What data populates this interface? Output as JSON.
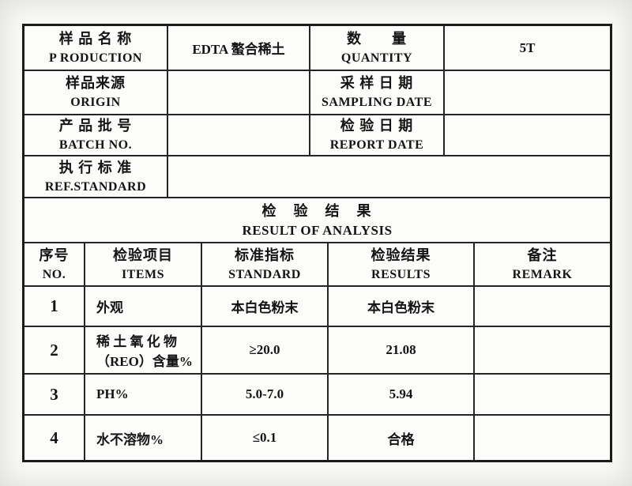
{
  "colors": {
    "border": "#242424",
    "outer_border": "#1b1b1b",
    "paper": "#fcfcfa",
    "text": "#141414"
  },
  "info": {
    "rows": [
      {
        "label_zh": "样 品 名 称",
        "label_en": "P RODUCTION",
        "value": "EDTA 螯合稀土",
        "label2_zh": "数　　量",
        "label2_en": "QUANTITY",
        "value2": "5T"
      },
      {
        "label_zh": "样品来源",
        "label_en": "ORIGIN",
        "value": "",
        "label2_zh": "采 样 日 期",
        "label2_en": "SAMPLING DATE",
        "value2": ""
      },
      {
        "label_zh": "产 品 批 号",
        "label_en": "BATCH NO.",
        "value": "",
        "label2_zh": "检 验 日 期",
        "label2_en": "REPORT DATE",
        "value2": ""
      }
    ],
    "ref_row": {
      "label_zh": "执 行 标 准",
      "label_en": "REF.STANDARD",
      "value": ""
    }
  },
  "section": {
    "title_zh": "检　验　结　果",
    "title_en": "RESULT OF ANALYSIS"
  },
  "results": {
    "headers": [
      {
        "zh": "序号",
        "en": "NO."
      },
      {
        "zh": "检验项目",
        "en": "ITEMS"
      },
      {
        "zh": "标准指标",
        "en": "STANDARD"
      },
      {
        "zh": "检验结果",
        "en": "RESULTS"
      },
      {
        "zh": "备注",
        "en": "REMARK"
      }
    ],
    "rows": [
      {
        "no": "1",
        "item": "外观",
        "standard": "本白色粉末",
        "result": "本白色粉末",
        "remark": ""
      },
      {
        "no": "2",
        "item": "稀 土 氧 化 物\n（REO）含量%",
        "standard": "≥20.0",
        "result": "21.08",
        "remark": ""
      },
      {
        "no": "3",
        "item": "PH%",
        "standard": "5.0-7.0",
        "result": "5.94",
        "remark": ""
      },
      {
        "no": "4",
        "item": "水不溶物%",
        "standard": "≤0.1",
        "result": "合格",
        "remark": ""
      }
    ]
  }
}
